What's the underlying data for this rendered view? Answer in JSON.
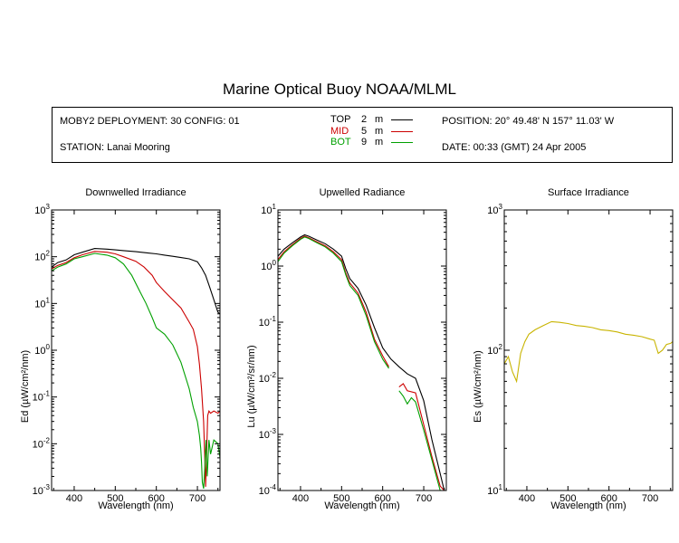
{
  "title": "Marine Optical Buoy NOAA/MLML",
  "info": {
    "deployment": "MOBY2 DEPLOYMENT: 30 CONFIG: 01",
    "station": "STATION: Lanai Mooring",
    "position": "POSITION: 20° 49.48' N   157° 11.03' W",
    "date": "DATE: 00:33 (GMT) 24 Apr 2005",
    "legend": [
      {
        "name": "TOP",
        "depth": "2",
        "unit": "m",
        "color": "#000000"
      },
      {
        "name": "MID",
        "depth": "5",
        "unit": "m",
        "color": "#cc0000"
      },
      {
        "name": "BOT",
        "depth": "9",
        "unit": "m",
        "color": "#00a000"
      }
    ]
  },
  "chart_data": [
    {
      "type": "line",
      "title": "Downwelled Irradiance",
      "xlabel": "Wavelength (nm)",
      "ylabel_main": "Ed",
      "ylabel_unit": "(µW/cm²/nm)",
      "yscale": "log",
      "xlim": [
        345,
        755
      ],
      "ylim": [
        0.001,
        1000
      ],
      "xticks": [
        400,
        500,
        600,
        700
      ],
      "yticks": [
        {
          "base": "10",
          "exp": "3"
        },
        {
          "base": "10",
          "exp": "2"
        },
        {
          "base": "10",
          "exp": "1"
        },
        {
          "base": "10",
          "exp": "0"
        },
        {
          "base": "10",
          "exp": "-1"
        },
        {
          "base": "10",
          "exp": "-2"
        },
        {
          "base": "10",
          "exp": "-3"
        }
      ],
      "series": [
        {
          "name": "TOP",
          "color": "#000000",
          "x": [
            345,
            360,
            380,
            400,
            420,
            450,
            480,
            500,
            520,
            550,
            580,
            600,
            620,
            640,
            660,
            680,
            700,
            710,
            720,
            730,
            740,
            750,
            755
          ],
          "y": [
            60,
            75,
            85,
            110,
            125,
            150,
            145,
            140,
            135,
            128,
            120,
            115,
            108,
            102,
            96,
            90,
            78,
            58,
            40,
            22,
            12,
            6.5,
            6
          ]
        },
        {
          "name": "MID",
          "color": "#cc0000",
          "x": [
            345,
            360,
            380,
            400,
            420,
            450,
            480,
            500,
            520,
            550,
            570,
            590,
            600,
            620,
            640,
            660,
            680,
            690,
            700,
            705,
            710,
            715,
            718,
            720,
            722,
            725,
            728,
            732,
            740,
            750,
            755
          ],
          "y": [
            55,
            65,
            75,
            95,
            110,
            130,
            125,
            115,
            100,
            80,
            60,
            40,
            28,
            18,
            12,
            8,
            4,
            2.8,
            1.2,
            0.5,
            0.15,
            0.03,
            0.005,
            0.0012,
            0.004,
            0.04,
            0.05,
            0.045,
            0.05,
            0.045,
            0.05
          ]
        },
        {
          "name": "BOT",
          "color": "#00a000",
          "x": [
            345,
            360,
            380,
            400,
            420,
            450,
            480,
            500,
            520,
            540,
            560,
            575,
            590,
            600,
            620,
            640,
            660,
            680,
            690,
            700,
            705,
            708,
            710,
            712,
            715,
            718,
            721,
            724,
            728,
            732,
            740,
            750,
            755
          ],
          "y": [
            50,
            60,
            70,
            90,
            100,
            118,
            108,
            95,
            70,
            40,
            18,
            10,
            5,
            3,
            2.2,
            1.3,
            0.55,
            0.15,
            0.06,
            0.03,
            0.015,
            0.008,
            0.004,
            0.0015,
            0.0011,
            0.003,
            0.012,
            0.002,
            0.012,
            0.006,
            0.012,
            0.01,
            0.005
          ]
        }
      ]
    },
    {
      "type": "line",
      "title": "Upwelled Radiance",
      "xlabel": "Wavelength (nm)",
      "ylabel_main": "Lu",
      "ylabel_unit": "(µW/cm²/sr/nm)",
      "yscale": "log",
      "xlim": [
        345,
        755
      ],
      "ylim": [
        0.0001,
        10
      ],
      "xticks": [
        400,
        500,
        600,
        700
      ],
      "yticks": [
        {
          "base": "10",
          "exp": "1"
        },
        {
          "base": "10",
          "exp": "0"
        },
        {
          "base": "10",
          "exp": "-1"
        },
        {
          "base": "10",
          "exp": "-2"
        },
        {
          "base": "10",
          "exp": "-3"
        },
        {
          "base": "10",
          "exp": "-4"
        }
      ],
      "series": [
        {
          "name": "TOP",
          "color": "#000000",
          "x": [
            345,
            360,
            380,
            400,
            410,
            420,
            440,
            460,
            480,
            500,
            510,
            520,
            540,
            560,
            580,
            600,
            620,
            640,
            660,
            680,
            700,
            720,
            740,
            750
          ],
          "y": [
            1.5,
            2.0,
            2.6,
            3.3,
            3.6,
            3.4,
            2.9,
            2.5,
            2.0,
            1.5,
            0.9,
            0.6,
            0.4,
            0.2,
            0.08,
            0.035,
            0.022,
            0.016,
            0.012,
            0.01,
            0.004,
            0.0008,
            0.0002,
            0.0001
          ]
        },
        {
          "name": "MID",
          "color": "#cc0000",
          "x": [
            345,
            360,
            380,
            400,
            410,
            420,
            440,
            460,
            480,
            500,
            510,
            520,
            540,
            560,
            580,
            600,
            615,
            620,
            640,
            650,
            660,
            680,
            700,
            720,
            740,
            750
          ],
          "y": [
            1.3,
            1.8,
            2.4,
            3.1,
            3.4,
            3.2,
            2.7,
            2.3,
            1.8,
            1.3,
            0.75,
            0.5,
            0.33,
            0.15,
            0.05,
            0.025,
            0.016,
            null,
            0.007,
            0.008,
            0.006,
            0.0055,
            0.0015,
            0.0004,
            0.00012,
            0.0001
          ]
        },
        {
          "name": "BOT",
          "color": "#00a000",
          "x": [
            345,
            360,
            380,
            400,
            410,
            420,
            440,
            460,
            480,
            500,
            510,
            520,
            540,
            560,
            580,
            600,
            615,
            620,
            640,
            650,
            660,
            670,
            680,
            700,
            720,
            740,
            750
          ],
          "y": [
            1.2,
            1.7,
            2.3,
            3.0,
            3.3,
            3.1,
            2.6,
            2.2,
            1.7,
            1.2,
            0.7,
            0.45,
            0.3,
            0.13,
            0.045,
            0.022,
            0.015,
            null,
            0.006,
            0.0048,
            0.0035,
            0.0045,
            0.0038,
            0.0012,
            0.00035,
            0.0001,
            0.0001
          ]
        }
      ]
    },
    {
      "type": "line",
      "title": "Surface Irradiance",
      "xlabel": "Wavelength (nm)",
      "ylabel_main": "Es",
      "ylabel_unit": "(µW/cm²/nm)",
      "yscale": "log",
      "xlim": [
        345,
        755
      ],
      "ylim": [
        10,
        1000
      ],
      "xticks": [
        400,
        500,
        600,
        700
      ],
      "yticks": [
        {
          "base": "10",
          "exp": "3"
        },
        {
          "base": "10",
          "exp": "2"
        },
        {
          "base": "10",
          "exp": "1"
        }
      ],
      "series": [
        {
          "name": "Es",
          "color": "#c8b400",
          "x": [
            345,
            355,
            365,
            375,
            385,
            395,
            405,
            420,
            440,
            460,
            480,
            500,
            520,
            540,
            560,
            580,
            600,
            620,
            640,
            660,
            680,
            700,
            710,
            720,
            730,
            740,
            750,
            755
          ],
          "y": [
            80,
            90,
            70,
            60,
            95,
            115,
            130,
            140,
            150,
            160,
            158,
            155,
            150,
            148,
            145,
            140,
            138,
            135,
            130,
            128,
            125,
            120,
            118,
            95,
            100,
            110,
            112,
            115
          ]
        }
      ]
    }
  ]
}
